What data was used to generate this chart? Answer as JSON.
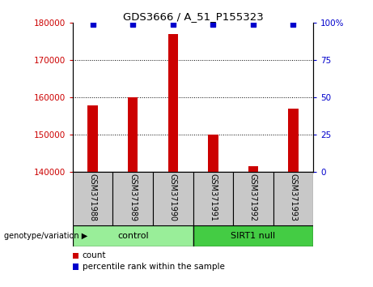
{
  "title": "GDS3666 / A_51_P155323",
  "samples": [
    "GSM371988",
    "GSM371989",
    "GSM371990",
    "GSM371991",
    "GSM371992",
    "GSM371993"
  ],
  "counts": [
    158000,
    160000,
    177000,
    150000,
    141500,
    157000
  ],
  "ylim_left": [
    140000,
    180000
  ],
  "yticks_left": [
    140000,
    150000,
    160000,
    170000,
    180000
  ],
  "ylim_right": [
    0,
    100
  ],
  "yticks_right": [
    0,
    25,
    50,
    75,
    100
  ],
  "bar_color": "#cc0000",
  "percentile_color": "#0000cc",
  "bar_width": 0.25,
  "groups": [
    {
      "label": "control",
      "indices": [
        0,
        1,
        2
      ],
      "color": "#99ee99"
    },
    {
      "label": "SIRT1 null",
      "indices": [
        3,
        4,
        5
      ],
      "color": "#44cc44"
    }
  ],
  "group_label_prefix": "genotype/variation",
  "legend_count_label": "count",
  "legend_percentile_label": "percentile rank within the sample",
  "background_color": "#ffffff",
  "label_bg_color": "#c8c8c8"
}
